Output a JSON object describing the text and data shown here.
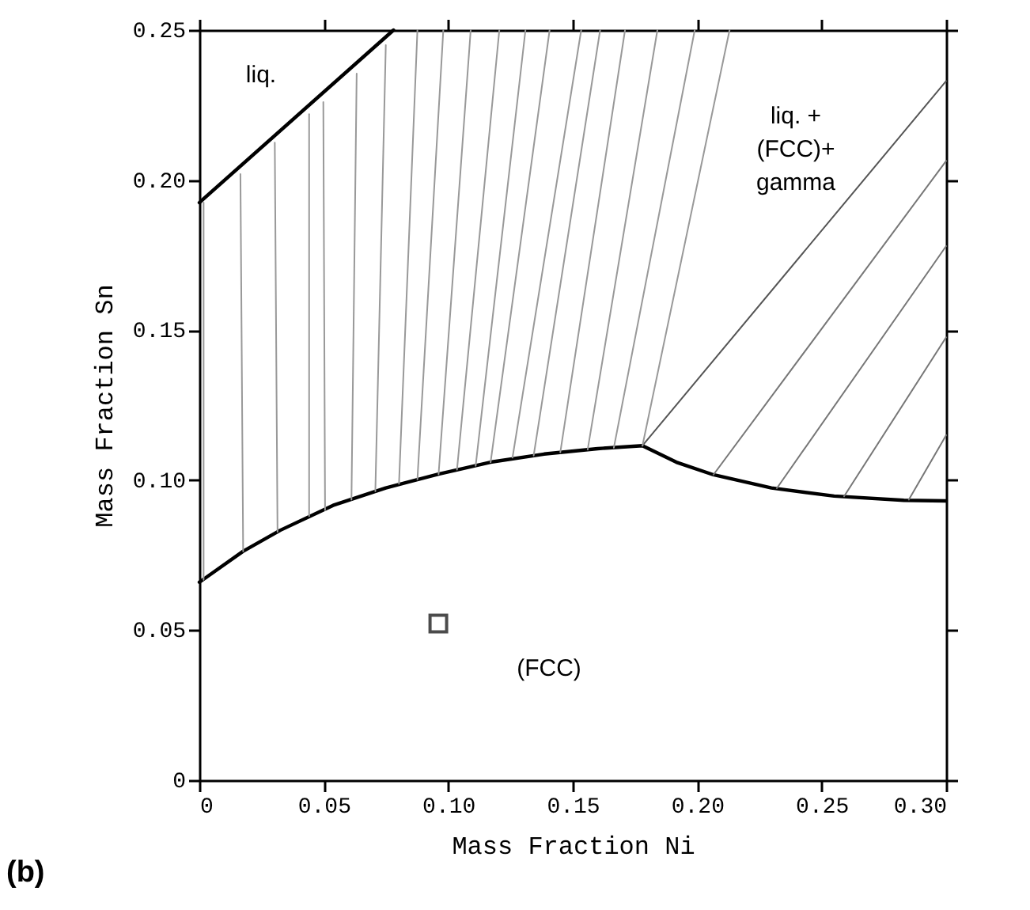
{
  "chart_data": {
    "type": "line",
    "xlabel": "Mass Fraction Ni",
    "ylabel": "Mass Fraction Sn",
    "xlim": [
      0,
      0.3
    ],
    "ylim": [
      0,
      0.25
    ],
    "xticks": [
      0,
      {
        "value": 0.05,
        "label": "0.05"
      },
      {
        "value": 0.1,
        "label": "0.10"
      },
      {
        "value": 0.15,
        "label": "0.15"
      },
      {
        "value": 0.2,
        "label": "0.20"
      },
      {
        "value": 0.25,
        "label": "0.25"
      },
      {
        "value": 0.3,
        "label": "0.30"
      }
    ],
    "yticks": [
      0,
      {
        "value": 0.05,
        "label": "0.05"
      },
      {
        "value": 0.1,
        "label": "0.10"
      },
      {
        "value": 0.15,
        "label": "0.15"
      },
      {
        "value": 0.2,
        "label": "0.20"
      },
      {
        "value": 0.25,
        "label": "0.25"
      }
    ],
    "grid": false,
    "marker": "none",
    "line_style": "solid",
    "annotations": [
      "liq.",
      "liq. +\n(FCC)+\ngamma",
      "(FCC)",
      "(b)"
    ],
    "series": [
      {
        "color": "#000000",
        "x": [
          0,
          0.078
        ],
        "values": [
          0.1925,
          0.25
        ]
      },
      {
        "color": "#000000",
        "x": [
          0,
          0.0176,
          0.0325,
          0.0537,
          0.0749,
          0.0961,
          0.117,
          0.1385,
          0.16,
          0.178,
          0.1916,
          0.2065,
          0.2298,
          0.255,
          0.283,
          0.3
        ],
        "values": [
          0.066,
          0.0763,
          0.0833,
          0.0916,
          0.0974,
          0.102,
          0.106,
          0.1087,
          0.1105,
          0.1115,
          0.106,
          0.1018,
          0.0974,
          0.0947,
          0.0933,
          0.0931
        ]
      },
      {
        "color": "#555555",
        "x": [
          0.178,
          0.3
        ],
        "values": [
          0.1115,
          0.233
        ]
      },
      {
        "color": "#999999",
        "x": [
          0.0017,
          0.0017
        ],
        "values": [
          0.0668,
          0.1925
        ]
      },
      {
        "color": "#999999",
        "x": [
          0.0176,
          0.0165
        ],
        "values": [
          0.0763,
          0.202
        ]
      },
      {
        "color": "#999999",
        "x": [
          0.0314,
          0.0303
        ],
        "values": [
          0.0828,
          0.2125
        ]
      },
      {
        "color": "#999999",
        "x": [
          0.0441,
          0.0441
        ],
        "values": [
          0.088,
          0.222
        ]
      },
      {
        "color": "#999999",
        "x": [
          0.0505,
          0.0498
        ],
        "values": [
          0.09,
          0.226
        ]
      },
      {
        "color": "#999999",
        "x": [
          0.0611,
          0.0632
        ],
        "values": [
          0.0935,
          0.2355
        ]
      },
      {
        "color": "#999999",
        "x": [
          0.0707,
          0.0749
        ],
        "values": [
          0.0963,
          0.245
        ]
      },
      {
        "color": "#999999",
        "x": [
          0.0802,
          0.0876
        ],
        "values": [
          0.0988,
          0.25
        ]
      },
      {
        "color": "#999999",
        "x": [
          0.0876,
          0.098
        ],
        "values": [
          0.1003,
          0.25
        ]
      },
      {
        "color": "#999999",
        "x": [
          0.0961,
          0.109
        ],
        "values": [
          0.102,
          0.25
        ]
      },
      {
        "color": "#999999",
        "x": [
          0.1035,
          0.1205
        ],
        "values": [
          0.1035,
          0.25
        ]
      },
      {
        "color": "#999999",
        "x": [
          0.111,
          0.131
        ],
        "values": [
          0.1048,
          0.25
        ]
      },
      {
        "color": "#999999",
        "x": [
          0.117,
          0.1407
        ],
        "values": [
          0.106,
          0.25
        ]
      },
      {
        "color": "#999999",
        "x": [
          0.1258,
          0.1534
        ],
        "values": [
          0.1075,
          0.25
        ]
      },
      {
        "color": "#999999",
        "x": [
          0.1343,
          0.161
        ],
        "values": [
          0.1082,
          0.25
        ]
      },
      {
        "color": "#999999",
        "x": [
          0.145,
          0.171
        ],
        "values": [
          0.1093,
          0.25
        ]
      },
      {
        "color": "#999999",
        "x": [
          0.156,
          0.184
        ],
        "values": [
          0.1102,
          0.25
        ]
      },
      {
        "color": "#999999",
        "x": [
          0.1665,
          0.199
        ],
        "values": [
          0.1108,
          0.25
        ]
      },
      {
        "color": "#999999",
        "x": [
          0.178,
          0.213
        ],
        "values": [
          0.1115,
          0.25
        ]
      },
      {
        "color": "#777777",
        "x": [
          0.2065,
          0.3
        ],
        "values": [
          0.1018,
          0.2064
        ]
      },
      {
        "color": "#777777",
        "x": [
          0.232,
          0.3
        ],
        "values": [
          0.0973,
          0.178
        ]
      },
      {
        "color": "#777777",
        "x": [
          0.259,
          0.3
        ],
        "values": [
          0.0946,
          0.1476
        ]
      },
      {
        "color": "#777777",
        "x": [
          0.285,
          0.3
        ],
        "values": [
          0.0935,
          0.115
        ]
      },
      {
        "type": "scatter",
        "marker": "square",
        "color": "#000000",
        "x": [
          0.096
        ],
        "values": [
          0.0522
        ]
      }
    ]
  }
}
